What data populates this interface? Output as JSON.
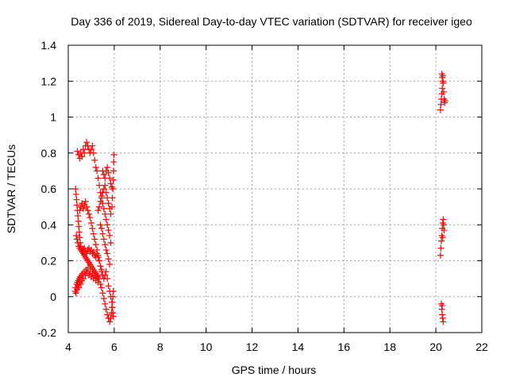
{
  "chart_data": {
    "type": "scatter",
    "title": "Day 336 of 2019, Sidereal Day-to-day VTEC variation (SDTVAR) for receiver igeo",
    "xlabel": "GPS time / hours",
    "ylabel": "SDTVAR / TECUs",
    "xlim": [
      4,
      22
    ],
    "ylim": [
      -0.2,
      1.4
    ],
    "x_ticks": [
      4,
      6,
      8,
      10,
      12,
      14,
      16,
      18,
      20,
      22
    ],
    "y_ticks": [
      -0.2,
      0,
      0.2,
      0.4,
      0.6,
      0.8,
      1,
      1.2,
      1.4
    ],
    "x_tick_labels": [
      "4",
      "6",
      "8",
      "10",
      "12",
      "14",
      "16",
      "18",
      "20",
      "22"
    ],
    "y_tick_labels": [
      "-0.2",
      "0",
      "0.2",
      "0.4",
      "0.6",
      "0.8",
      "1",
      "1.2",
      "1.4"
    ],
    "grid": true,
    "marker": "plus",
    "marker_color": "#ff0000",
    "series": [
      {
        "name": "SDTVAR",
        "points": [
          [
            4.3,
            0.03
          ],
          [
            4.32,
            0.05
          ],
          [
            4.34,
            0.02
          ],
          [
            4.36,
            0.07
          ],
          [
            4.38,
            0.04
          ],
          [
            4.4,
            0.08
          ],
          [
            4.42,
            0.06
          ],
          [
            4.44,
            0.09
          ],
          [
            4.46,
            0.05
          ],
          [
            4.48,
            0.1
          ],
          [
            4.5,
            0.08
          ],
          [
            4.52,
            0.11
          ],
          [
            4.55,
            0.07
          ],
          [
            4.58,
            0.12
          ],
          [
            4.6,
            0.09
          ],
          [
            4.63,
            0.13
          ],
          [
            4.66,
            0.1
          ],
          [
            4.7,
            0.14
          ],
          [
            4.74,
            0.12
          ],
          [
            4.78,
            0.15
          ],
          [
            4.82,
            0.13
          ],
          [
            4.86,
            0.16
          ],
          [
            4.9,
            0.12
          ],
          [
            4.95,
            0.14
          ],
          [
            5.0,
            0.11
          ],
          [
            5.05,
            0.13
          ],
          [
            5.1,
            0.1
          ],
          [
            5.15,
            0.12
          ],
          [
            5.2,
            0.09
          ],
          [
            5.25,
            0.11
          ],
          [
            5.3,
            0.08
          ],
          [
            5.35,
            0.1
          ],
          [
            5.4,
            0.07
          ],
          [
            5.45,
            0.05
          ],
          [
            5.5,
            0.02
          ],
          [
            5.55,
            -0.01
          ],
          [
            5.6,
            -0.04
          ],
          [
            5.65,
            -0.07
          ],
          [
            5.7,
            -0.1
          ],
          [
            5.75,
            -0.12
          ],
          [
            5.8,
            -0.14
          ],
          [
            5.85,
            -0.12
          ],
          [
            5.88,
            -0.09
          ],
          [
            5.9,
            -0.06
          ],
          [
            5.92,
            -0.03
          ],
          [
            5.94,
            0.0
          ],
          [
            5.96,
            0.03
          ],
          [
            4.32,
            0.6
          ],
          [
            4.34,
            0.57
          ],
          [
            4.36,
            0.54
          ],
          [
            4.38,
            0.51
          ],
          [
            4.4,
            0.48
          ],
          [
            4.42,
            0.45
          ],
          [
            4.44,
            0.42
          ],
          [
            4.46,
            0.39
          ],
          [
            4.48,
            0.36
          ],
          [
            4.5,
            0.33
          ],
          [
            4.52,
            0.3
          ],
          [
            4.55,
            0.28
          ],
          [
            4.58,
            0.26
          ],
          [
            4.62,
            0.25
          ],
          [
            4.66,
            0.24
          ],
          [
            4.7,
            0.23
          ],
          [
            4.75,
            0.22
          ],
          [
            4.8,
            0.21
          ],
          [
            4.85,
            0.2
          ],
          [
            4.9,
            0.19
          ],
          [
            4.95,
            0.18
          ],
          [
            5.0,
            0.17
          ],
          [
            5.05,
            0.16
          ],
          [
            5.1,
            0.15
          ],
          [
            5.15,
            0.14
          ],
          [
            5.2,
            0.13
          ],
          [
            5.25,
            0.12
          ],
          [
            5.3,
            0.11
          ],
          [
            4.35,
            0.34
          ],
          [
            4.38,
            0.32
          ],
          [
            4.42,
            0.3
          ],
          [
            4.46,
            0.28
          ],
          [
            4.5,
            0.27
          ],
          [
            4.55,
            0.26
          ],
          [
            4.6,
            0.25
          ],
          [
            4.65,
            0.26
          ],
          [
            4.7,
            0.27
          ],
          [
            4.75,
            0.25
          ],
          [
            4.8,
            0.24
          ],
          [
            4.85,
            0.26
          ],
          [
            4.9,
            0.27
          ],
          [
            4.95,
            0.25
          ],
          [
            5.0,
            0.26
          ],
          [
            5.05,
            0.24
          ],
          [
            5.1,
            0.25
          ],
          [
            5.15,
            0.23
          ],
          [
            5.2,
            0.22
          ],
          [
            5.25,
            0.24
          ],
          [
            4.5,
            0.48
          ],
          [
            4.55,
            0.5
          ],
          [
            4.6,
            0.52
          ],
          [
            4.65,
            0.49
          ],
          [
            4.7,
            0.51
          ],
          [
            4.75,
            0.53
          ],
          [
            4.8,
            0.5
          ],
          [
            4.85,
            0.48
          ],
          [
            4.9,
            0.46
          ],
          [
            4.95,
            0.44
          ],
          [
            5.0,
            0.41
          ],
          [
            5.05,
            0.38
          ],
          [
            5.1,
            0.35
          ],
          [
            5.15,
            0.32
          ],
          [
            5.2,
            0.29
          ],
          [
            5.25,
            0.26
          ],
          [
            5.3,
            0.23
          ],
          [
            5.35,
            0.2
          ],
          [
            5.4,
            0.17
          ],
          [
            5.45,
            0.14
          ],
          [
            4.4,
            0.81
          ],
          [
            4.45,
            0.79
          ],
          [
            4.5,
            0.77
          ],
          [
            4.55,
            0.8
          ],
          [
            4.6,
            0.78
          ],
          [
            4.65,
            0.82
          ],
          [
            4.7,
            0.8
          ],
          [
            4.75,
            0.84
          ],
          [
            4.8,
            0.86
          ],
          [
            4.85,
            0.84
          ],
          [
            4.9,
            0.82
          ],
          [
            4.95,
            0.8
          ],
          [
            5.0,
            0.82
          ],
          [
            5.05,
            0.84
          ],
          [
            5.1,
            0.8
          ],
          [
            5.15,
            0.76
          ],
          [
            5.2,
            0.72
          ],
          [
            5.25,
            0.7
          ],
          [
            5.3,
            0.66
          ],
          [
            5.35,
            0.62
          ],
          [
            5.4,
            0.58
          ],
          [
            5.45,
            0.55
          ],
          [
            5.5,
            0.52
          ],
          [
            5.55,
            0.49
          ],
          [
            5.6,
            0.46
          ],
          [
            5.65,
            0.43
          ],
          [
            5.7,
            0.4
          ],
          [
            5.75,
            0.37
          ],
          [
            5.8,
            0.34
          ],
          [
            5.85,
            0.3
          ],
          [
            5.3,
            0.48
          ],
          [
            5.35,
            0.5
          ],
          [
            5.4,
            0.53
          ],
          [
            5.45,
            0.56
          ],
          [
            5.5,
            0.58
          ],
          [
            5.55,
            0.6
          ],
          [
            5.6,
            0.62
          ],
          [
            5.65,
            0.58
          ],
          [
            5.7,
            0.55
          ],
          [
            5.75,
            0.52
          ],
          [
            5.8,
            0.49
          ],
          [
            5.85,
            0.46
          ],
          [
            5.9,
            0.5
          ],
          [
            5.92,
            0.55
          ],
          [
            5.94,
            0.6
          ],
          [
            5.96,
            0.65
          ],
          [
            5.97,
            0.7
          ],
          [
            5.98,
            0.75
          ],
          [
            5.99,
            0.79
          ],
          [
            5.5,
            0.7
          ],
          [
            5.55,
            0.68
          ],
          [
            5.6,
            0.66
          ],
          [
            5.65,
            0.7
          ],
          [
            5.7,
            0.72
          ],
          [
            5.75,
            0.69
          ],
          [
            5.8,
            0.66
          ],
          [
            5.85,
            0.63
          ],
          [
            5.9,
            0.61
          ],
          [
            5.3,
            0.22
          ],
          [
            5.35,
            0.2
          ],
          [
            5.4,
            0.17
          ],
          [
            5.45,
            0.15
          ],
          [
            5.5,
            0.12
          ],
          [
            5.55,
            0.1
          ],
          [
            5.6,
            0.12
          ],
          [
            5.65,
            0.14
          ],
          [
            5.7,
            0.1
          ],
          [
            5.75,
            0.06
          ],
          [
            5.8,
            0.03
          ],
          [
            5.85,
            0.0
          ],
          [
            5.9,
            -0.03
          ],
          [
            5.92,
            -0.06
          ],
          [
            5.94,
            -0.09
          ],
          [
            5.96,
            -0.11
          ],
          [
            5.4,
            0.4
          ],
          [
            5.45,
            0.38
          ],
          [
            5.5,
            0.35
          ],
          [
            5.55,
            0.32
          ],
          [
            5.6,
            0.29
          ],
          [
            5.65,
            0.26
          ],
          [
            5.7,
            0.24
          ],
          [
            5.75,
            0.21
          ],
          [
            5.8,
            0.18
          ],
          [
            20.2,
            1.04
          ],
          [
            20.22,
            1.07
          ],
          [
            20.24,
            1.1
          ],
          [
            20.26,
            1.13
          ],
          [
            20.28,
            1.16
          ],
          [
            20.3,
            1.2
          ],
          [
            20.3,
            1.23
          ],
          [
            20.32,
            1.19
          ],
          [
            20.34,
            1.14
          ],
          [
            20.36,
            1.1
          ],
          [
            20.38,
            1.08
          ],
          [
            20.4,
            1.09
          ],
          [
            20.26,
            1.24
          ],
          [
            20.28,
            1.22
          ],
          [
            20.2,
            0.23
          ],
          [
            20.22,
            0.27
          ],
          [
            20.24,
            0.31
          ],
          [
            20.26,
            0.34
          ],
          [
            20.28,
            0.38
          ],
          [
            20.3,
            0.41
          ],
          [
            20.32,
            0.43
          ],
          [
            20.34,
            0.4
          ],
          [
            20.36,
            0.37
          ],
          [
            20.3,
            0.33
          ],
          [
            20.24,
            -0.04
          ],
          [
            20.26,
            -0.07
          ],
          [
            20.28,
            -0.1
          ],
          [
            20.3,
            -0.12
          ],
          [
            20.32,
            -0.14
          ],
          [
            20.28,
            -0.05
          ]
        ]
      }
    ]
  }
}
